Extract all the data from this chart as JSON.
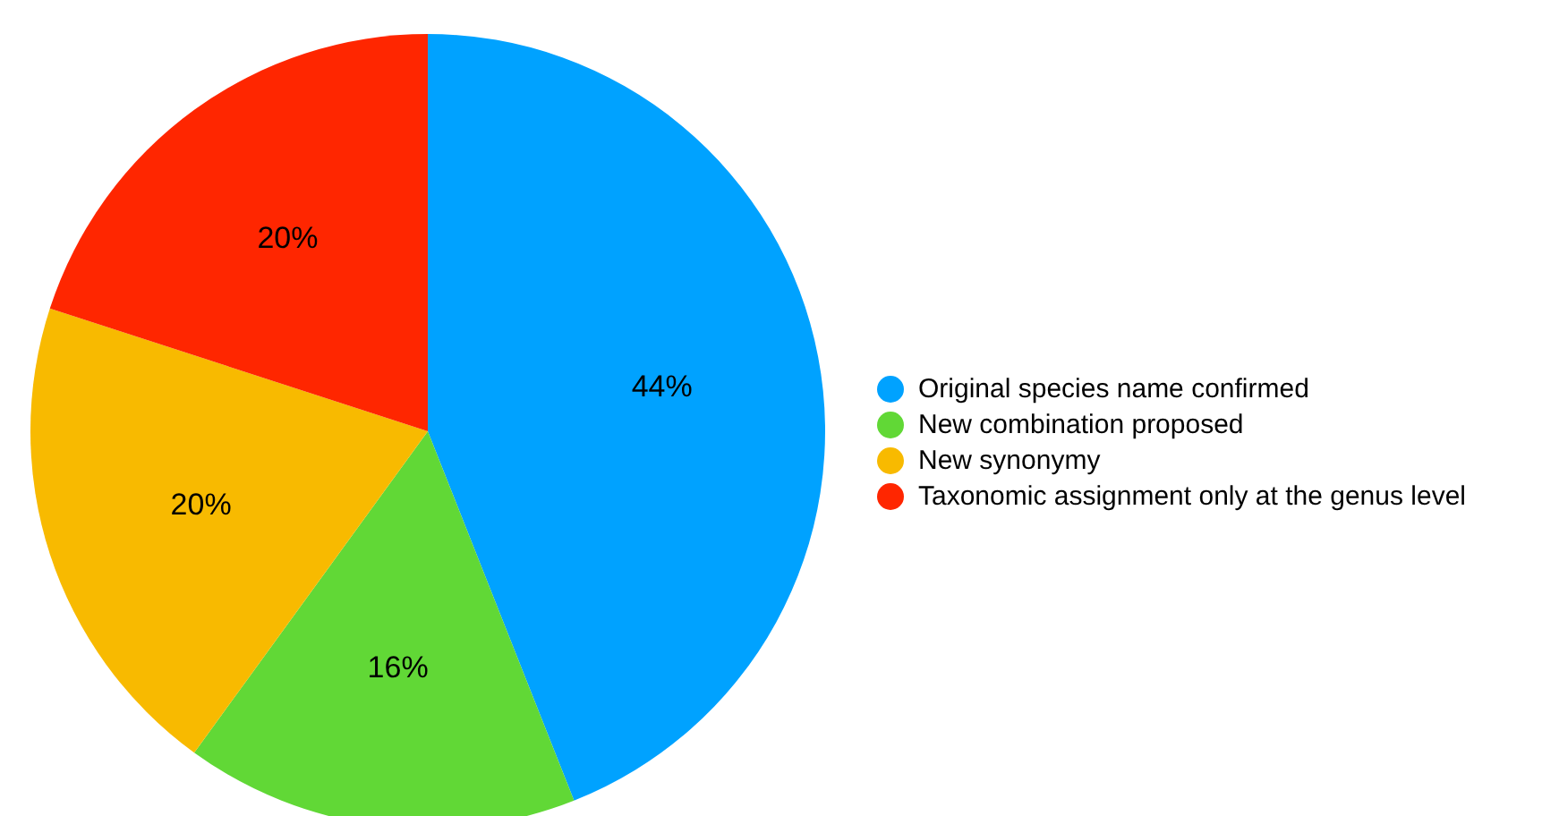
{
  "chart_data": {
    "type": "pie",
    "categories": [
      "Original species name confirmed",
      "New combination proposed",
      "New synonymy",
      "Taxonomic assignment only at the genus level"
    ],
    "values": [
      44,
      16,
      20,
      20
    ],
    "colors": [
      "#00a2ff",
      "#61d836",
      "#f8ba00",
      "#ff2600"
    ],
    "value_labels": [
      "44%",
      "16%",
      "20%",
      "20%"
    ],
    "legend": "right"
  }
}
